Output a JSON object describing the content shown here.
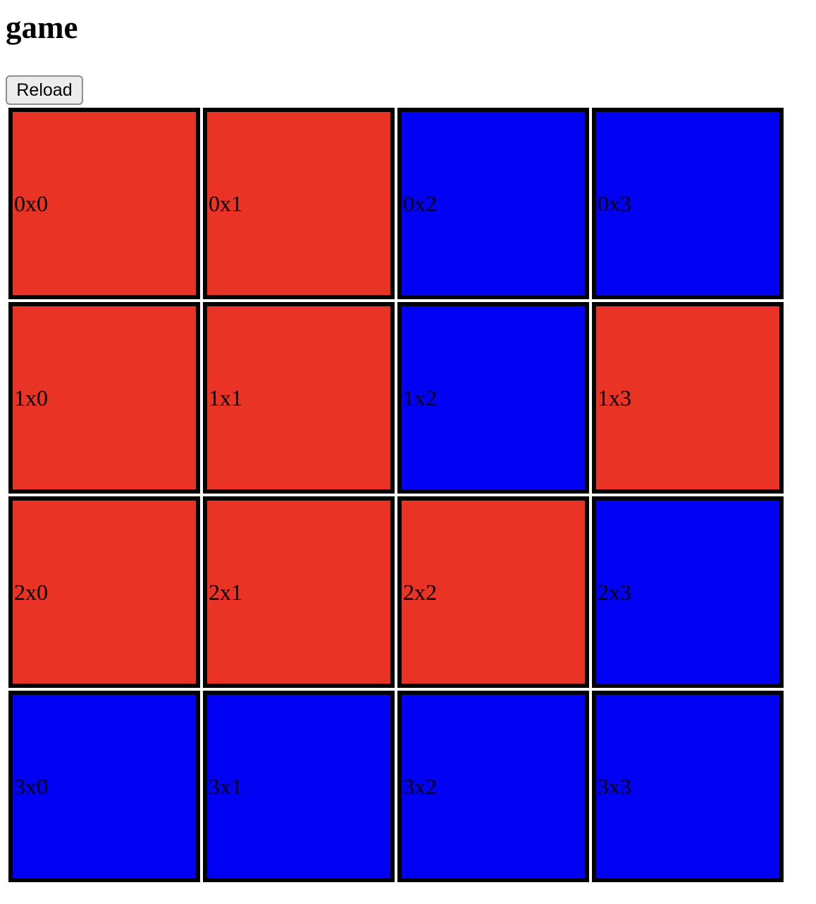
{
  "page": {
    "title": "game"
  },
  "controls": {
    "reload_label": "Reload"
  },
  "colors": {
    "red": "#e93324",
    "blue": "#0000f5",
    "border": "#000000"
  },
  "board": {
    "rows": [
      [
        {
          "label": "0x0",
          "color": "red"
        },
        {
          "label": "0x1",
          "color": "red"
        },
        {
          "label": "0x2",
          "color": "blue"
        },
        {
          "label": "0x3",
          "color": "blue"
        }
      ],
      [
        {
          "label": "1x0",
          "color": "red"
        },
        {
          "label": "1x1",
          "color": "red"
        },
        {
          "label": "1x2",
          "color": "blue"
        },
        {
          "label": "1x3",
          "color": "red"
        }
      ],
      [
        {
          "label": "2x0",
          "color": "red"
        },
        {
          "label": "2x1",
          "color": "red"
        },
        {
          "label": "2x2",
          "color": "red"
        },
        {
          "label": "2x3",
          "color": "blue"
        }
      ],
      [
        {
          "label": "3x0",
          "color": "blue"
        },
        {
          "label": "3x1",
          "color": "blue"
        },
        {
          "label": "3x2",
          "color": "blue"
        },
        {
          "label": "3x3",
          "color": "blue"
        }
      ]
    ]
  }
}
